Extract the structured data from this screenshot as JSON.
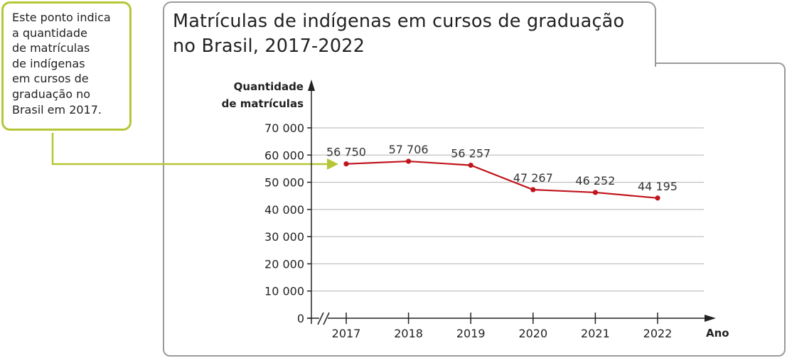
{
  "callout": {
    "text": "Este ponto indica\na quantidade\nde matrículas\nde indígenas\nem cursos de\ngraduação no\nBrasil em 2017."
  },
  "title": "Matrículas de indígenas em cursos de graduação\nno Brasil, 2017-2022",
  "colors": {
    "line": "#c0141c",
    "callout_border": "#b5c736",
    "frame": "#9a9a9a",
    "grid": "#b3b3b3"
  },
  "chart_data": {
    "type": "line",
    "title": "Matrículas de indígenas em cursos de graduação no Brasil, 2017-2022",
    "ylabel": "Quantidade de matrículas",
    "xlabel": "Ano",
    "categories": [
      "2017",
      "2018",
      "2019",
      "2020",
      "2021",
      "2022"
    ],
    "values": [
      56750,
      57706,
      56257,
      47267,
      46252,
      44195
    ],
    "value_labels": [
      "56 750",
      "57 706",
      "56 257",
      "47 267",
      "46 252",
      "44 195"
    ],
    "ylim": [
      0,
      70000
    ],
    "yticks": [
      0,
      10000,
      20000,
      30000,
      40000,
      50000,
      60000,
      70000
    ],
    "ytick_labels": [
      "0",
      "10 000",
      "20 000",
      "30 000",
      "40 000",
      "50 000",
      "60 000",
      "70 000"
    ],
    "grid": true,
    "axis_break": true
  }
}
